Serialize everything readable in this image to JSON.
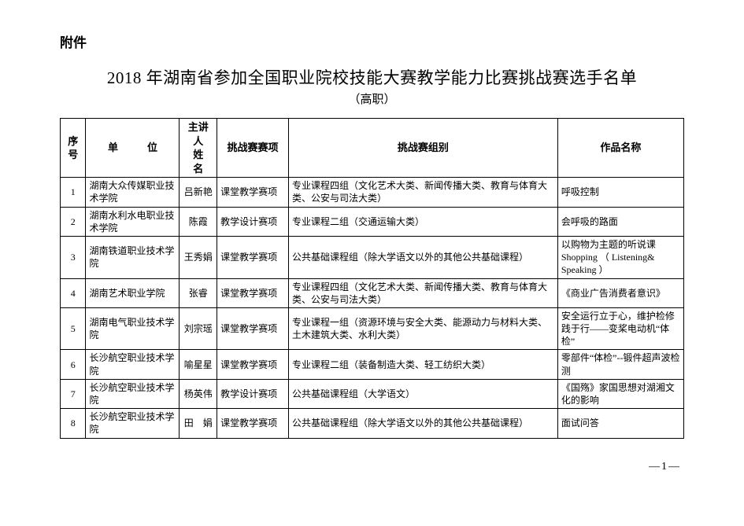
{
  "doc": {
    "attachment_label": "附件",
    "title": "2018 年湖南省参加全国职业院校技能大赛教学能力比赛挑战赛选手名单",
    "subtitle": "（高职）",
    "page_number": "—1—"
  },
  "table": {
    "headers": {
      "index": "序号",
      "org": "单　位",
      "name": "主讲人\n姓　名",
      "event": "挑战赛赛项",
      "group": "挑战赛组别",
      "work": "作品名称"
    },
    "rows": [
      {
        "index": "1",
        "org": "湖南大众传媒职业技术学院",
        "name": "吕新艳",
        "event": "课堂教学赛项",
        "group": "专业课程四组（文化艺术大类、新闻传播大类、教育与体育大类、公安与司法大类）",
        "work": "呼吸控制"
      },
      {
        "index": "2",
        "org": "湖南水利水电职业技术学院",
        "name": "陈霞",
        "event": "教学设计赛项",
        "group": "专业课程二组（交通运输大类）",
        "work": "会呼吸的路面"
      },
      {
        "index": "3",
        "org": "湖南铁道职业技术学院",
        "name": "王秀娟",
        "event": "课堂教学赛项",
        "group": "公共基础课程组（除大学语文以外的其他公共基础课程）",
        "work": "以购物为主题的听说课 Shopping （ Listening& Speaking ）"
      },
      {
        "index": "4",
        "org": "湖南艺术职业学院",
        "name": "张睿",
        "event": "课堂教学赛项",
        "group": "专业课程四组（文化艺术大类、新闻传播大类、教育与体育大类、公安与司法大类）",
        "work": "《商业广告消费者意识》"
      },
      {
        "index": "5",
        "org": "湖南电气职业技术学院",
        "name": "刘宗瑶",
        "event": "课堂教学赛项",
        "group": "专业课程一组（资源环境与安全大类、能源动力与材料大类、土木建筑大类、水利大类）",
        "work": "安全运行立于心，维护检修践于行——变桨电动机“体检”"
      },
      {
        "index": "6",
        "org": "长沙航空职业技术学院",
        "name": "喻星星",
        "event": "课堂教学赛项",
        "group": "专业课程二组（装备制造大类、轻工纺织大类）",
        "work": "零部件“体检”--锻件超声波检测"
      },
      {
        "index": "7",
        "org": "长沙航空职业技术学院",
        "name": "杨英伟",
        "event": "教学设计赛项",
        "group": "公共基础课程组（大学语文）",
        "work": "《国殇》家国思想对湖湘文化的影响"
      },
      {
        "index": "8",
        "org": "长沙航空职业技术学院",
        "name": "田　娟",
        "event": "课堂教学赛项",
        "group": "公共基础课程组（除大学语文以外的其他公共基础课程）",
        "work": "面试问答"
      }
    ]
  }
}
